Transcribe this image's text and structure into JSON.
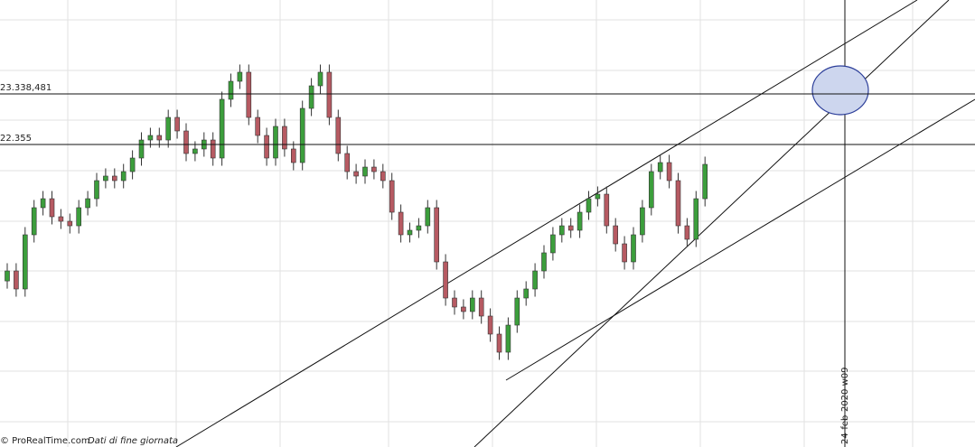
{
  "chart_data": {
    "type": "candlestick",
    "categories": [
      null,
      null,
      null,
      null,
      null,
      null,
      null,
      null,
      null,
      null,
      null,
      null,
      null,
      null,
      null,
      null,
      null,
      null,
      null,
      null,
      null,
      null,
      null,
      null,
      null,
      null,
      null,
      null,
      null,
      null,
      null,
      null,
      null,
      null,
      null,
      null,
      null,
      null,
      null,
      null,
      null,
      null,
      null,
      null,
      null,
      null,
      null,
      null,
      null,
      null,
      null,
      null,
      null,
      null,
      null,
      null,
      null,
      null,
      null,
      null,
      null,
      null,
      null,
      null,
      null,
      null,
      null,
      null,
      null,
      null,
      null,
      null,
      null,
      null,
      null,
      null,
      null,
      null,
      null
    ],
    "open": [
      19700,
      19895,
      19544,
      20598,
      21125,
      21300,
      20949,
      20861,
      20773,
      21125,
      21300,
      21652,
      21740,
      21652,
      21827,
      22091,
      22442,
      22530,
      22442,
      22881,
      22618,
      22179,
      22267,
      22442,
      22091,
      23233,
      23584,
      23760,
      22881,
      22530,
      22091,
      22706,
      22267,
      22003,
      23057,
      23496,
      23760,
      22881,
      22179,
      21827,
      21740,
      21915,
      21827,
      21652,
      21037,
      20598,
      20686,
      20773,
      21125,
      20071,
      19368,
      19193,
      19105,
      19368,
      19017,
      18666,
      18314,
      18841,
      19368,
      19544,
      19895,
      20247,
      20598,
      20773,
      20686,
      21037,
      21300,
      21388,
      20773,
      20422,
      20071,
      20598,
      21125,
      21827,
      22003,
      21652,
      20773,
      20510,
      21300
    ],
    "high": [
      20045,
      20045,
      20748,
      21275,
      21450,
      21450,
      21099,
      21011,
      21275,
      21450,
      21802,
      21890,
      21890,
      21977,
      22241,
      22592,
      22680,
      22680,
      23031,
      23031,
      22768,
      22417,
      22592,
      22592,
      23383,
      23734,
      23910,
      23910,
      23031,
      22680,
      22856,
      22856,
      22417,
      23207,
      23646,
      23910,
      23910,
      23031,
      22329,
      21977,
      22065,
      22065,
      21977,
      21802,
      21187,
      20836,
      20923,
      21275,
      21275,
      20221,
      19518,
      19343,
      19518,
      19518,
      19167,
      18816,
      18991,
      19518,
      19694,
      20045,
      20397,
      20748,
      20923,
      20923,
      21187,
      21450,
      21538,
      21538,
      20923,
      20572,
      20748,
      21275,
      21977,
      22153,
      22153,
      21802,
      20923,
      21450,
      22118
    ],
    "low": [
      19550,
      19394,
      19394,
      20448,
      20975,
      20799,
      20711,
      20623,
      20623,
      20975,
      21150,
      21502,
      21502,
      21502,
      21677,
      21941,
      22292,
      22292,
      22292,
      22468,
      22029,
      22029,
      22117,
      21941,
      21941,
      23083,
      23434,
      22731,
      22380,
      21941,
      21941,
      22117,
      21853,
      21853,
      22907,
      23346,
      22731,
      22029,
      21677,
      21590,
      21590,
      21677,
      21502,
      20887,
      20448,
      20448,
      20536,
      20623,
      19921,
      19218,
      19043,
      18955,
      18955,
      18867,
      18516,
      18164,
      18164,
      18691,
      19218,
      19394,
      19745,
      20097,
      20448,
      20536,
      20536,
      20887,
      21150,
      20623,
      20272,
      19921,
      19921,
      20448,
      20975,
      21677,
      21502,
      20623,
      20360,
      20360,
      21150
    ],
    "close": [
      19895,
      19544,
      20598,
      21125,
      21300,
      20949,
      20861,
      20773,
      21125,
      21300,
      21652,
      21740,
      21652,
      21827,
      22091,
      22442,
      22530,
      22442,
      22881,
      22618,
      22179,
      22267,
      22442,
      22091,
      23233,
      23584,
      23760,
      22881,
      22530,
      22091,
      22706,
      22267,
      22003,
      23057,
      23496,
      23760,
      22881,
      22179,
      21827,
      21740,
      21915,
      21827,
      21652,
      21037,
      20598,
      20686,
      20773,
      21125,
      20071,
      19368,
      19193,
      19105,
      19368,
      19017,
      18666,
      18314,
      18841,
      19368,
      19544,
      19895,
      20247,
      20598,
      20773,
      20686,
      21037,
      21300,
      21388,
      20773,
      20422,
      20071,
      20598,
      21125,
      21827,
      22003,
      21652,
      20773,
      20510,
      21300,
      21968
    ],
    "up_color": "#3c9e3c",
    "down_color": "#b65a62",
    "ylim": [
      25165,
      16470
    ],
    "levels": [
      {
        "value": 23338.481,
        "label": "23.338,481"
      },
      {
        "value": 22355,
        "label": "22.355"
      }
    ],
    "marker_label": "24-feb-2020 w09",
    "source": "© ProRealTime.com",
    "source_note": "Dati di fine giornata"
  }
}
